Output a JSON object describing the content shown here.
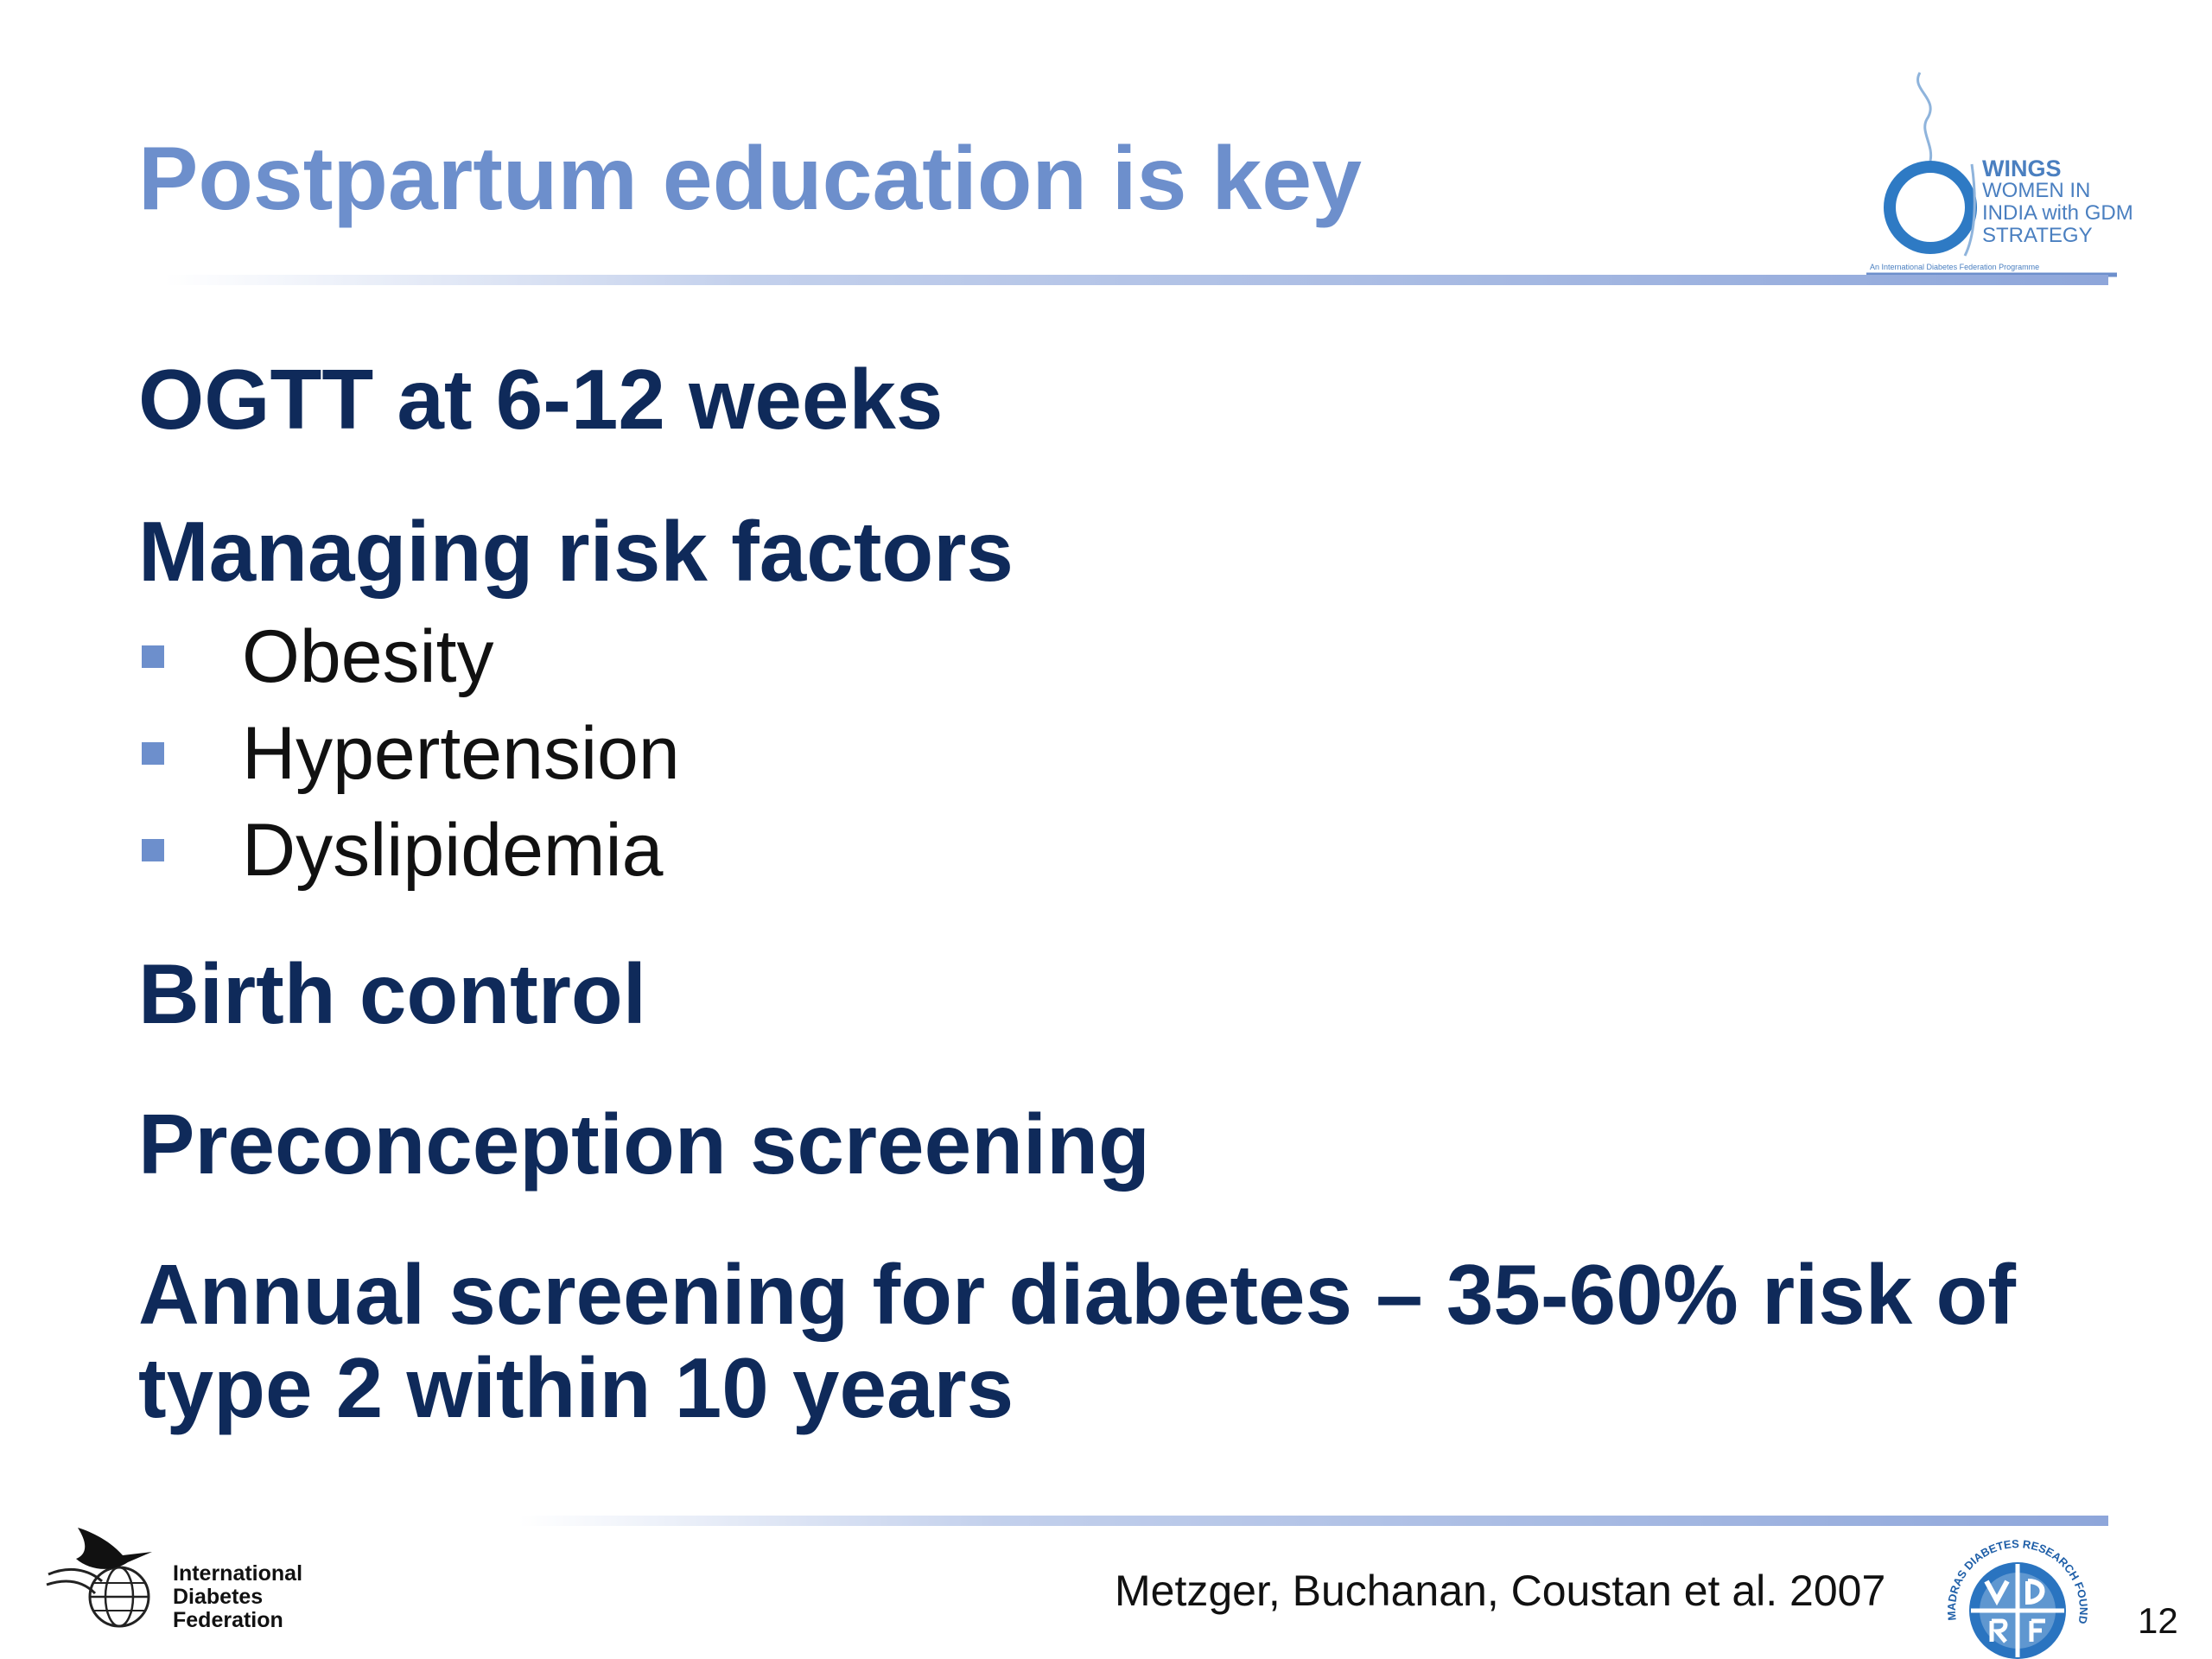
{
  "slide": {
    "title": "Postpartum education is key",
    "headings": {
      "ogtt": "OGTT at 6-12 weeks",
      "risk_factors": "Managing risk factors",
      "birth_control": "Birth control",
      "preconception": "Preconception screening",
      "annual_line1": "Annual screening for diabetes – 35-60% risk of",
      "annual_line2": "type 2 within 10 years"
    },
    "risk_factor_items": [
      "Obesity",
      "Hypertension",
      "Dyslipidemia"
    ],
    "citation": "Metzger, Buchanan, Coustan et al. 2007",
    "page_number": "12"
  },
  "logos": {
    "wings": {
      "icon": "wings-logo",
      "title": "WINGS",
      "line1": "WOMEN IN",
      "line2": "INDIA with GDM",
      "line3": "STRATEGY",
      "subtitle": "An International Diabetes Federation Programme"
    },
    "idf": {
      "icon": "idf-bird-globe-logo",
      "line1": "International",
      "line2": "Diabetes",
      "line3": "Federation"
    },
    "mdrf": {
      "icon": "mdrf-seal-logo",
      "ring_text": "MADRAS DIABETES RESEARCH FOUNDATION"
    }
  },
  "colors": {
    "title": "#6d8fcc",
    "heading": "#0f2a5a",
    "bullet": "#6d8fcc",
    "logo_blue": "#4a7fc0"
  }
}
